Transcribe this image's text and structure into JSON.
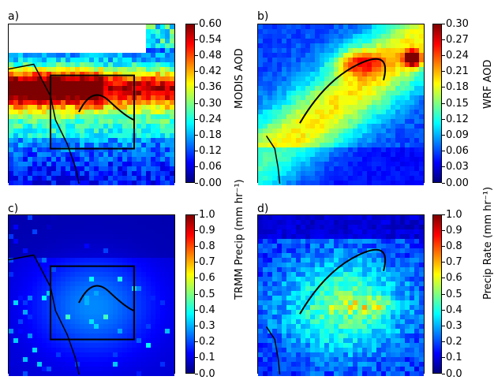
{
  "chart_data": [
    {
      "type": "heatmap",
      "panel_label": "a)",
      "colorbar_label": "MODIS AOD",
      "colorbar_ticks": [
        "0.00",
        "0.06",
        "0.12",
        "0.18",
        "0.24",
        "0.30",
        "0.36",
        "0.42",
        "0.48",
        "0.54",
        "0.60"
      ],
      "vmin": 0.0,
      "vmax": 0.6,
      "box_overlay": true
    },
    {
      "type": "heatmap",
      "panel_label": "b)",
      "colorbar_label": "WRF AOD",
      "colorbar_ticks": [
        "0.00",
        "0.03",
        "0.06",
        "0.09",
        "0.12",
        "0.15",
        "0.18",
        "0.21",
        "0.24",
        "0.27",
        "0.30"
      ],
      "vmin": 0.0,
      "vmax": 0.3,
      "box_overlay": false
    },
    {
      "type": "heatmap",
      "panel_label": "c)",
      "colorbar_label": "TRMM Precip (mm hr⁻¹)",
      "colorbar_ticks": [
        "0.0",
        "0.1",
        "0.2",
        "0.3",
        "0.4",
        "0.5",
        "0.6",
        "0.7",
        "0.8",
        "0.9",
        "1.0"
      ],
      "vmin": 0.0,
      "vmax": 1.0,
      "box_overlay": true
    },
    {
      "type": "heatmap",
      "panel_label": "d)",
      "colorbar_label": "Precip Rate (mm hr⁻¹)",
      "colorbar_ticks": [
        "0.0",
        "0.1",
        "0.2",
        "0.3",
        "0.4",
        "0.5",
        "0.6",
        "0.7",
        "0.8",
        "0.9",
        "1.0"
      ],
      "vmin": 0.0,
      "vmax": 1.0,
      "box_overlay": false
    }
  ],
  "colors": {
    "colormap": [
      "#00007f",
      "#0000ff",
      "#007fff",
      "#00ffff",
      "#7fff7f",
      "#ffff00",
      "#ff7f00",
      "#ff0000",
      "#7f0000"
    ]
  }
}
